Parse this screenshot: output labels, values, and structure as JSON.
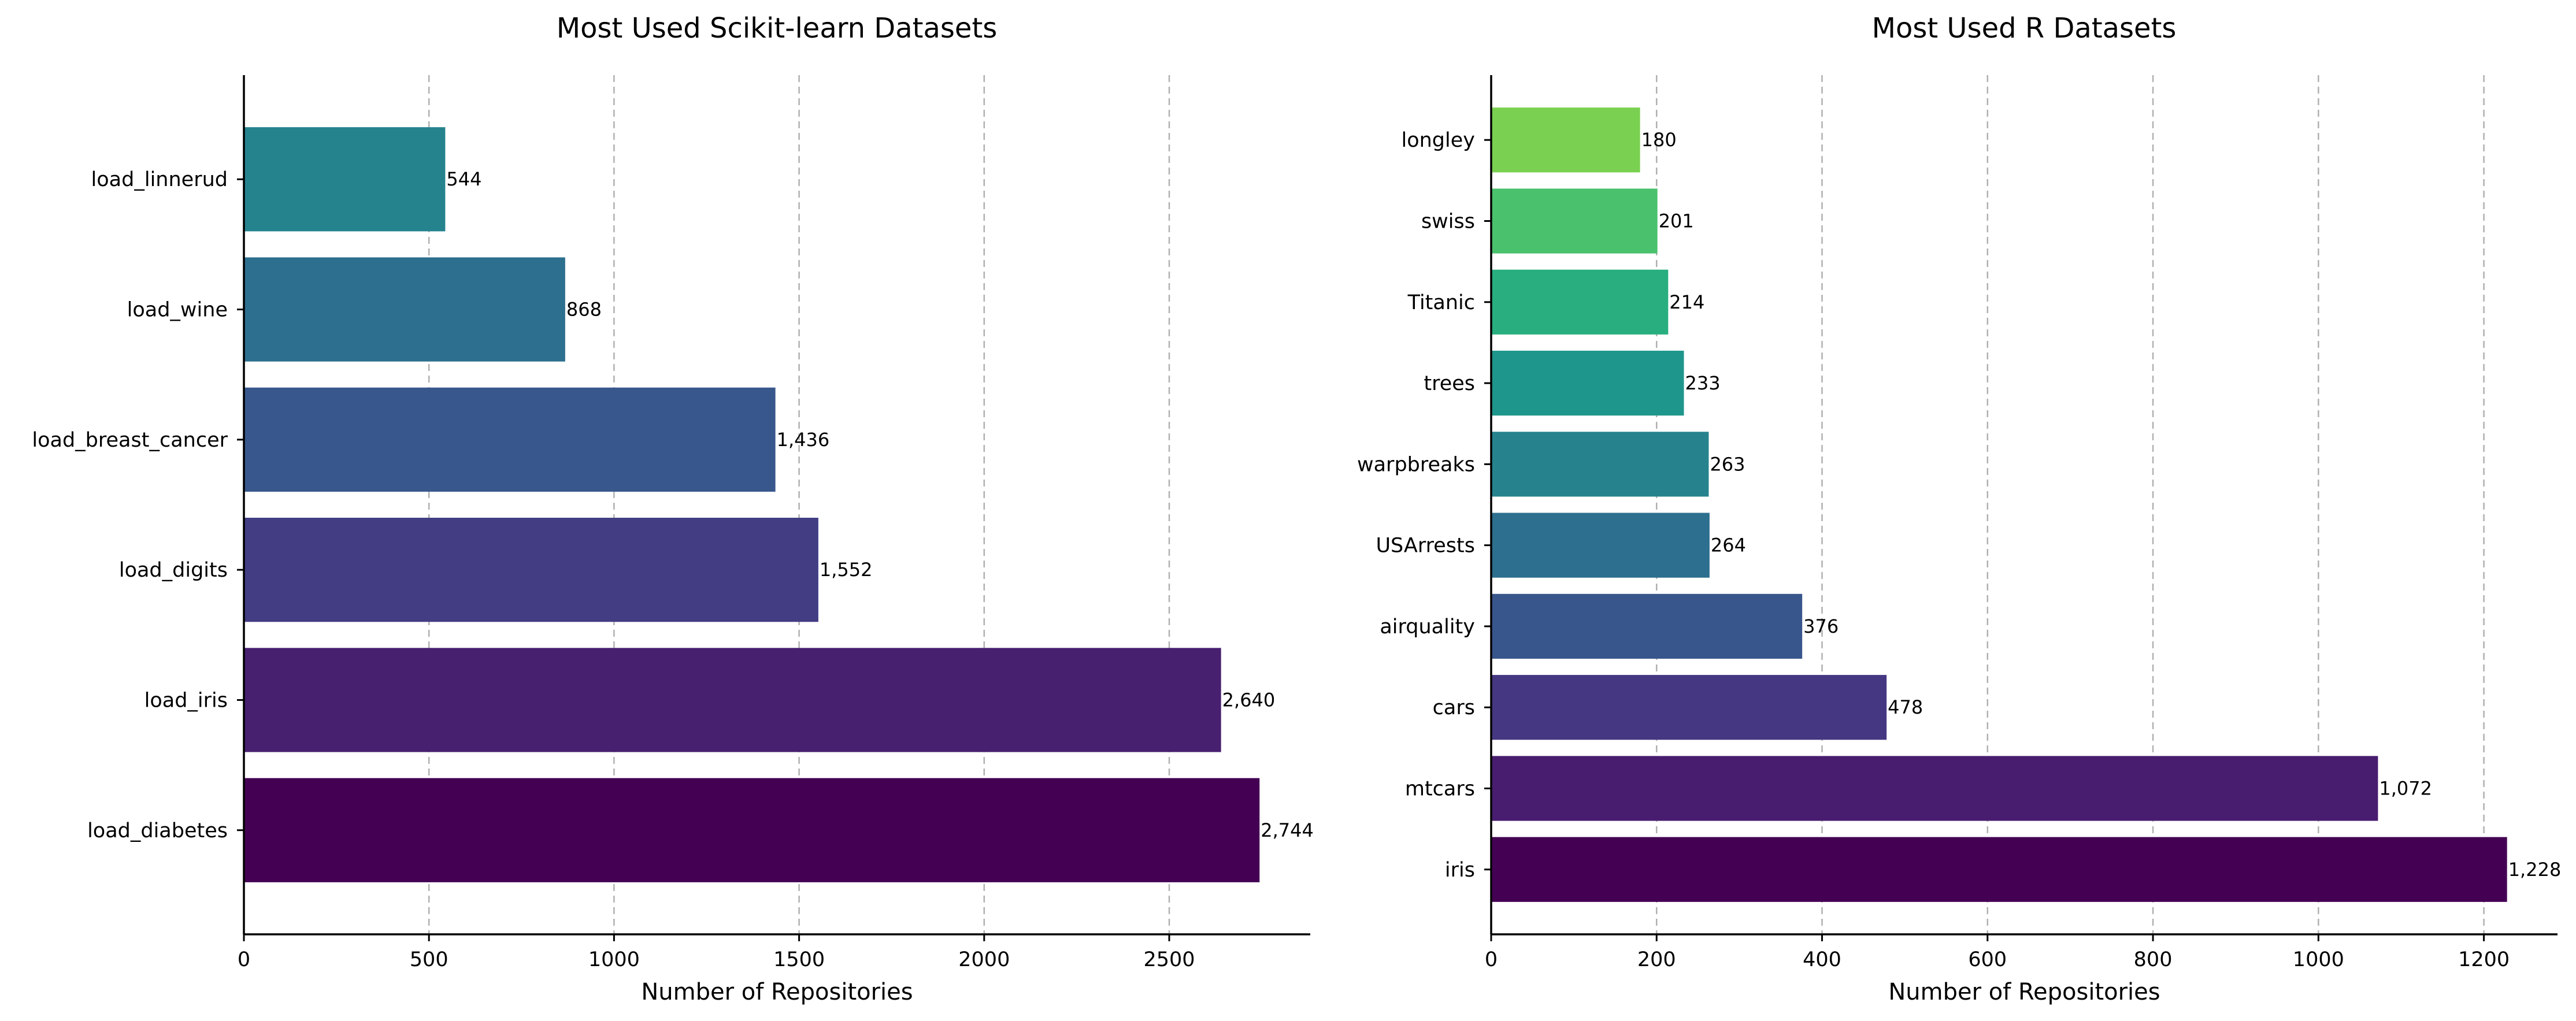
{
  "chart_data": [
    {
      "type": "bar",
      "orientation": "horizontal",
      "title": "Most Used Scikit-learn Datasets",
      "xlabel": "Number of Repositories",
      "ylabel": "",
      "categories": [
        "load_diabetes",
        "load_iris",
        "load_digits",
        "load_breast_cancer",
        "load_wine",
        "load_linnerud"
      ],
      "values": [
        2744,
        2640,
        1552,
        1436,
        868,
        544
      ],
      "value_labels": [
        "2,744",
        "2,640",
        "1,552",
        "1,436",
        "868",
        "544"
      ],
      "colors": [
        "#440154",
        "#482070",
        "#433d84",
        "#38578c",
        "#2d6f8e",
        "#25838e"
      ],
      "xlim": [
        0,
        2881
      ],
      "xticks": [
        0,
        500,
        1000,
        1500,
        2000,
        2500
      ],
      "xtick_labels": [
        "0",
        "500",
        "1000",
        "1500",
        "2000",
        "2500"
      ],
      "grid": "x dashed"
    },
    {
      "type": "bar",
      "orientation": "horizontal",
      "title": "Most Used R Datasets",
      "xlabel": "Number of Repositories",
      "ylabel": "",
      "categories": [
        "iris",
        "mtcars",
        "cars",
        "airquality",
        "USArrests",
        "warpbreaks",
        "trees",
        "Titanic",
        "swiss",
        "longley"
      ],
      "values": [
        1228,
        1072,
        478,
        376,
        264,
        263,
        233,
        214,
        201,
        180
      ],
      "value_labels": [
        "1,228",
        "1,072",
        "478",
        "376",
        "264",
        "263",
        "233",
        "214",
        "201",
        "180"
      ],
      "colors": [
        "#440154",
        "#481d6f",
        "#453781",
        "#39568c",
        "#2d6f8e",
        "#26838e",
        "#1f968b",
        "#29af7f",
        "#4ac16d",
        "#7ad151"
      ],
      "xlim": [
        0,
        1289
      ],
      "xticks": [
        0,
        200,
        400,
        600,
        800,
        1000,
        1200
      ],
      "xtick_labels": [
        "0",
        "200",
        "400",
        "600",
        "800",
        "1000",
        "1200"
      ],
      "grid": "x dashed"
    }
  ]
}
